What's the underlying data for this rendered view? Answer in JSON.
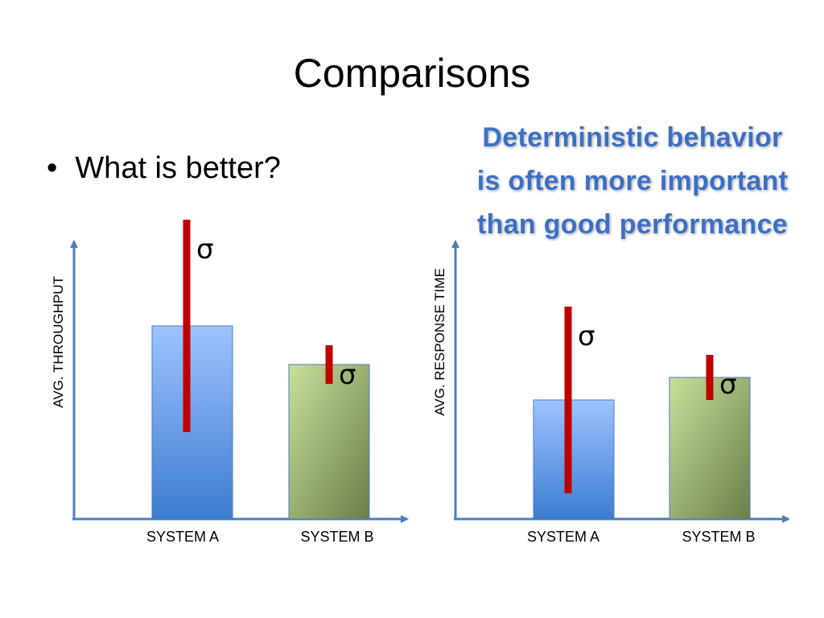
{
  "slide": {
    "title": "Comparisons",
    "bullet": "What is better?",
    "callout_lines": [
      "Deterministic behavior",
      "is often more important",
      "than good performance"
    ]
  },
  "colors": {
    "axis": "#4a7ebb",
    "system_a": "#4f86d6",
    "system_b": "#8ca863",
    "error_bar": "#c00000"
  },
  "chart_data": [
    {
      "type": "bar",
      "title": "",
      "xlabel": "",
      "ylabel": "AVG. THROUGHPUT",
      "categories": [
        "SYSTEM A",
        "SYSTEM B"
      ],
      "values": [
        60,
        48
      ],
      "error": [
        66,
        12
      ],
      "error_label": "σ",
      "ylim": [
        0,
        100
      ],
      "grid": false
    },
    {
      "type": "bar",
      "title": "",
      "xlabel": "",
      "ylabel": "AVG. RESPONSE TIME",
      "categories": [
        "SYSTEM A",
        "SYSTEM B"
      ],
      "values": [
        37,
        44
      ],
      "error": [
        58,
        14
      ],
      "error_label": "σ",
      "ylim": [
        0,
        100
      ],
      "grid": false
    }
  ]
}
